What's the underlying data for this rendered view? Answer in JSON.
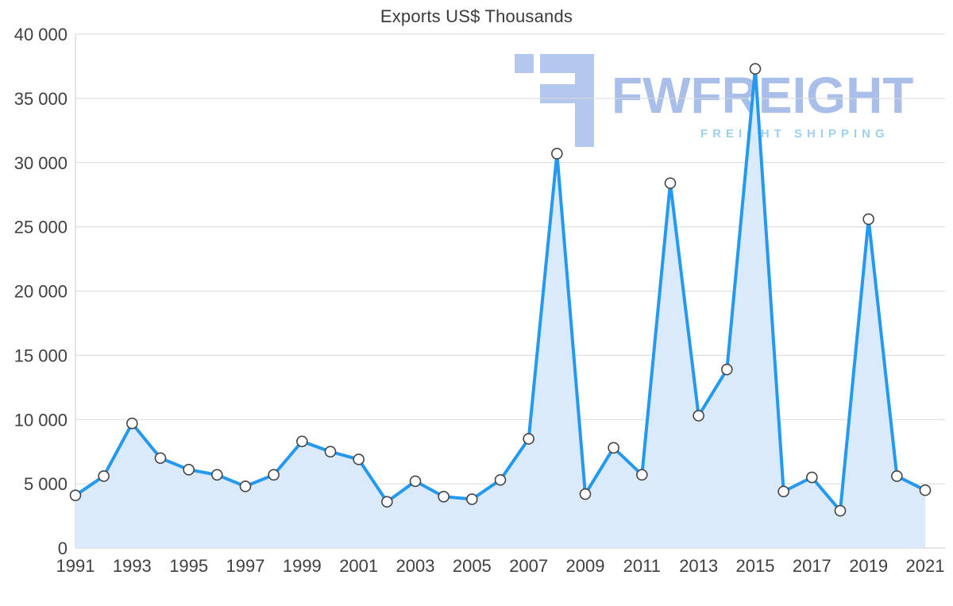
{
  "page": {
    "title": "Exports US$ Thousands"
  },
  "watermark": {
    "brand": "FWFREIGHT",
    "tagline": "FREIGHT SHIPPING"
  },
  "chart_data": {
    "type": "area",
    "title": "Exports US$ Thousands",
    "xlabel": "",
    "ylabel": "",
    "x": [
      1991,
      1992,
      1993,
      1994,
      1995,
      1996,
      1997,
      1998,
      1999,
      2000,
      2001,
      2002,
      2003,
      2004,
      2005,
      2006,
      2007,
      2008,
      2009,
      2010,
      2011,
      2012,
      2013,
      2014,
      2015,
      2016,
      2017,
      2018,
      2019,
      2020,
      2021
    ],
    "values": [
      4100,
      5600,
      9700,
      7000,
      6100,
      5700,
      4800,
      5700,
      8300,
      7500,
      6900,
      3600,
      5200,
      4000,
      3800,
      5300,
      8500,
      30700,
      4200,
      7800,
      5700,
      28400,
      10300,
      13900,
      37300,
      4400,
      5500,
      2900,
      25600,
      5600,
      4500
    ],
    "ylim": [
      0,
      40000
    ],
    "ytick_step": 5000,
    "xtick_every": 2,
    "grid": true,
    "legend": false,
    "colors": {
      "line": "#2499f2",
      "area": "#dbeafb",
      "marker_fill": "#ffffff",
      "marker_stroke": "#444444",
      "grid": "#d9d9d9",
      "axis": "#c9c9c9",
      "axis_text": "#404040",
      "watermark_logo": "#b4c8ee"
    }
  }
}
